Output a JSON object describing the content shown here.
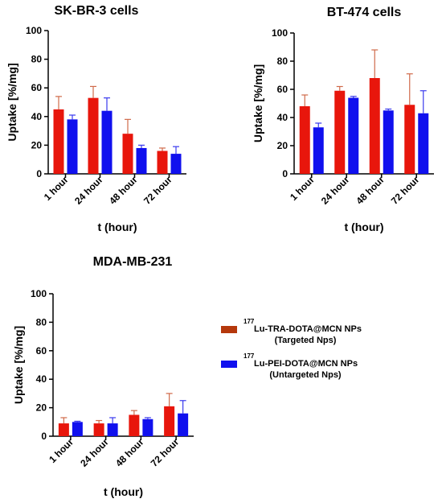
{
  "chart_data": [
    {
      "type": "bar",
      "title": "SK-BR-3 cells",
      "xlabel": "t (hour)",
      "ylabel": "Uptake [%/mg]",
      "ylim": [
        0,
        100
      ],
      "yticks": [
        0,
        20,
        40,
        60,
        80,
        100
      ],
      "categories": [
        "1 hour",
        "24 hour",
        "48 hour",
        "72 hour"
      ],
      "series": [
        {
          "name": "177Lu-TRA-DOTA@MCN NPs (Targeted Nps)",
          "values": [
            45,
            53,
            28,
            16
          ],
          "errors": [
            9,
            8,
            10,
            2
          ]
        },
        {
          "name": "177Lu-PEI-DOTA@MCN NPs (Untargeted Nps)",
          "values": [
            38,
            44,
            18,
            14
          ],
          "errors": [
            3,
            9,
            2,
            5
          ]
        }
      ]
    },
    {
      "type": "bar",
      "title": "BT-474 cells",
      "xlabel": "t (hour)",
      "ylabel": "Uptake [%/mg]",
      "ylim": [
        0,
        100
      ],
      "yticks": [
        0,
        20,
        40,
        60,
        80,
        100
      ],
      "categories": [
        "1 hour",
        "24 hour",
        "48 hour",
        "72 hour"
      ],
      "series": [
        {
          "name": "177Lu-TRA-DOTA@MCN NPs (Targeted Nps)",
          "values": [
            48,
            59,
            68,
            49
          ],
          "errors": [
            8,
            3,
            20,
            22
          ]
        },
        {
          "name": "177Lu-PEI-DOTA@MCN NPs (Untargeted Nps)",
          "values": [
            33,
            54,
            45,
            43
          ],
          "errors": [
            3,
            1,
            1,
            16
          ]
        }
      ]
    },
    {
      "type": "bar",
      "title": "MDA-MB-231",
      "xlabel": "t (hour)",
      "ylabel": "Uptake [%/mg]",
      "ylim": [
        0,
        100
      ],
      "yticks": [
        0,
        20,
        40,
        60,
        80,
        100
      ],
      "categories": [
        "1 hour",
        "24 hour",
        "48 hour",
        "72 hour"
      ],
      "series": [
        {
          "name": "177Lu-TRA-DOTA@MCN NPs (Targeted Nps)",
          "values": [
            9,
            9,
            15,
            21
          ],
          "errors": [
            4,
            2,
            3,
            9
          ]
        },
        {
          "name": "177Lu-PEI-DOTA@MCN NPs (Untargeted Nps)",
          "values": [
            10,
            9,
            12,
            16
          ],
          "errors": [
            0.5,
            4,
            1,
            9
          ]
        }
      ]
    }
  ],
  "legend": {
    "items": [
      {
        "sup": "177",
        "label": "Lu-TRA-DOTA@MCN NPs",
        "sub": "(Targeted Nps)",
        "color": "#b5380c"
      },
      {
        "sup": "177",
        "label": "Lu-PEI-DOTA@MCN NPs",
        "sub": "(Untargeted Nps)",
        "color": "#1010ee"
      }
    ]
  },
  "colors": {
    "targeted": "#e8160c",
    "untargeted": "#1010ee",
    "targeted_err": "#d06a4a",
    "untargeted_err": "#3a3aee"
  }
}
